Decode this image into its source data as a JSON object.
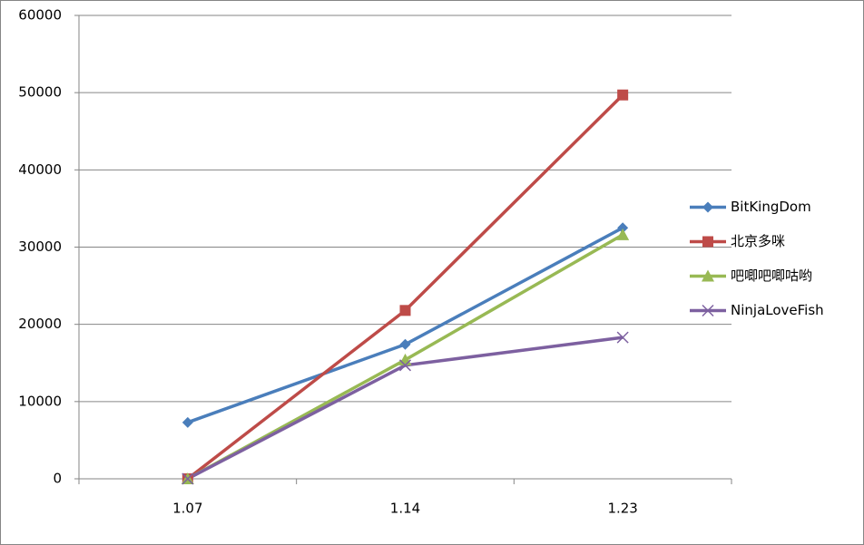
{
  "chart_data": {
    "type": "line",
    "categories": [
      "1.07",
      "1.14",
      "1.23"
    ],
    "series": [
      {
        "name": "BitKingDom",
        "color": "#4a7ebb",
        "marker": "diamond",
        "values": [
          7300,
          17400,
          32500
        ]
      },
      {
        "name": "北京多咪",
        "color": "#be4b48",
        "marker": "square",
        "values": [
          0,
          21800,
          49700
        ]
      },
      {
        "name": "吧唧吧唧咕哟",
        "color": "#98b954",
        "marker": "triangle",
        "values": [
          0,
          15400,
          31600
        ]
      },
      {
        "name": "NinjaLoveFish",
        "color": "#7d60a0",
        "marker": "x",
        "values": [
          0,
          14700,
          18300
        ]
      }
    ],
    "ylim": [
      0,
      60000
    ],
    "yticks": [
      0,
      10000,
      20000,
      30000,
      40000,
      50000,
      60000
    ],
    "grid": true,
    "legend": "right"
  }
}
